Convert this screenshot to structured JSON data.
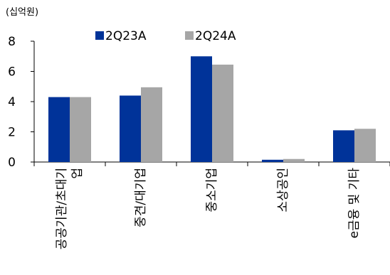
{
  "chart_data": {
    "type": "bar",
    "unit_label": "(십억원)",
    "categories": [
      "공공기관/초대기업",
      "중견/대기업",
      "중소기업",
      "소상공인",
      "e금융 및 기타"
    ],
    "category_label_lines": [
      [
        "공공기관/초대기",
        "업"
      ],
      [
        "중견/대기업"
      ],
      [
        "중소기업"
      ],
      [
        "소상공인"
      ],
      [
        "e금융 및 기타"
      ]
    ],
    "series": [
      {
        "name": "2Q23A",
        "color": "#003399",
        "values": [
          4.3,
          4.4,
          7.0,
          0.15,
          2.1
        ]
      },
      {
        "name": "2Q24A",
        "color": "#a6a6a6",
        "values": [
          4.3,
          4.95,
          6.45,
          0.2,
          2.2
        ]
      }
    ],
    "ylim": [
      0,
      8
    ],
    "yticks": [
      "0",
      "2",
      "4",
      "6",
      "8"
    ],
    "legend_position": "top",
    "grid": false
  }
}
